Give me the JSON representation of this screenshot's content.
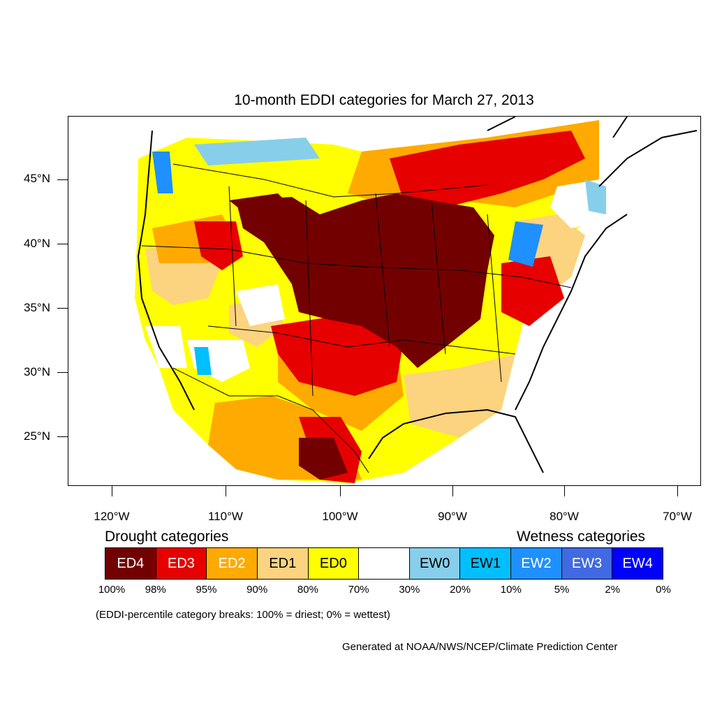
{
  "title": "10-month EDDI categories for March 27, 2013",
  "latitude_labels": [
    "45°N",
    "40°N",
    "35°N",
    "30°N",
    "25°N"
  ],
  "longitude_labels": [
    "120°W",
    "110°W",
    "100°W",
    "90°W",
    "80°W",
    "70°W"
  ],
  "legend": {
    "drought_heading": "Drought categories",
    "wetness_heading": "Wetness categories",
    "categories": [
      {
        "label": "ED4",
        "color": "#730000",
        "text_color": "#ffffff"
      },
      {
        "label": "ED3",
        "color": "#e60000",
        "text_color": "#ffffff"
      },
      {
        "label": "ED2",
        "color": "#ffaa00",
        "text_color": "#ffffff"
      },
      {
        "label": "ED1",
        "color": "#fcd37f",
        "text_color": "#000000"
      },
      {
        "label": "ED0",
        "color": "#ffff00",
        "text_color": "#000000"
      },
      {
        "label": "",
        "color": "#ffffff",
        "text_color": "#000000"
      },
      {
        "label": "EW0",
        "color": "#87ceeb",
        "text_color": "#000000"
      },
      {
        "label": "EW1",
        "color": "#00bfff",
        "text_color": "#000000"
      },
      {
        "label": "EW2",
        "color": "#1e90ff",
        "text_color": "#ffffff"
      },
      {
        "label": "EW3",
        "color": "#4169e1",
        "text_color": "#ffffff"
      },
      {
        "label": "EW4",
        "color": "#0000ff",
        "text_color": "#ffffff"
      }
    ],
    "breaks": [
      "100%",
      "98%",
      "95%",
      "90%",
      "80%",
      "70%",
      "30%",
      "20%",
      "10%",
      "5%",
      "2%",
      "0%"
    ]
  },
  "note": "(EDDI-percentile category breaks: 100% = driest; 0% = wettest)",
  "credit": "Generated at NOAA/NWS/NCEP/Climate Prediction Center"
}
